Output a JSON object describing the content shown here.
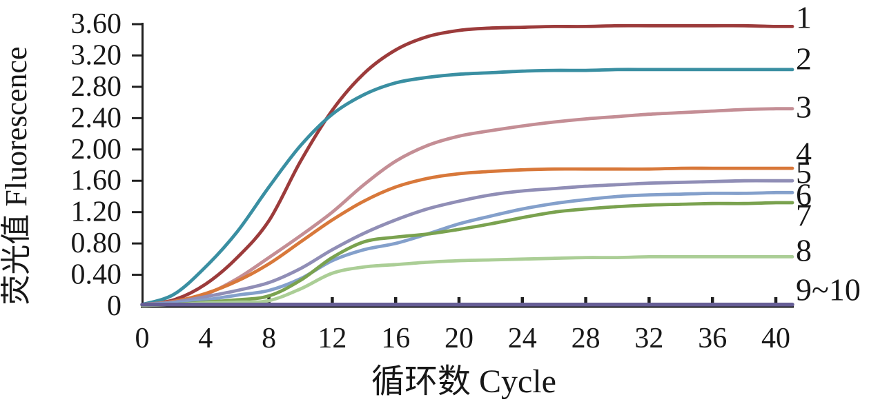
{
  "figure": {
    "background": "#ffffff",
    "axis_color": "#1f1f1f",
    "text_color": "#171717"
  },
  "chart_data": {
    "type": "line",
    "title": "",
    "xlabel": "循环数 Cycle",
    "ylabel": "荧光值 Fluorescence",
    "xlim": [
      0,
      40
    ],
    "ylim": [
      0,
      3.6
    ],
    "grid": false,
    "legend_position": "labels-at-right-end-of-lines",
    "xticks": [
      0,
      4,
      8,
      12,
      16,
      20,
      24,
      28,
      32,
      36,
      40
    ],
    "yticks": [
      0,
      0.4,
      0.8,
      1.2,
      1.6,
      2.0,
      2.4,
      2.8,
      3.2,
      3.6
    ],
    "ytick_labels": [
      "0",
      "0.40",
      "0.80",
      "1.20",
      "1.60",
      "2.00",
      "2.40",
      "2.80",
      "3.20",
      "3.60"
    ],
    "x_cycles": [
      0,
      2,
      4,
      6,
      8,
      10,
      12,
      14,
      16,
      18,
      20,
      22,
      24,
      26,
      28,
      30,
      32,
      34,
      36,
      38,
      40
    ],
    "series": [
      {
        "name": "1",
        "color": "#9c3b3b",
        "plateau": 3.57,
        "values": [
          0.02,
          0.08,
          0.28,
          0.62,
          1.09,
          1.85,
          2.5,
          2.97,
          3.27,
          3.44,
          3.52,
          3.55,
          3.56,
          3.57,
          3.57,
          3.58,
          3.58,
          3.58,
          3.58,
          3.58,
          3.57
        ]
      },
      {
        "name": "2",
        "color": "#3a8fa2",
        "plateau": 3.02,
        "values": [
          0.02,
          0.15,
          0.5,
          0.95,
          1.52,
          2.05,
          2.45,
          2.7,
          2.85,
          2.92,
          2.96,
          2.98,
          3.0,
          3.01,
          3.01,
          3.02,
          3.02,
          3.02,
          3.02,
          3.02,
          3.02
        ]
      },
      {
        "name": "3",
        "color": "#c48e95",
        "plateau": 2.52,
        "values": [
          0.02,
          0.06,
          0.15,
          0.35,
          0.62,
          0.9,
          1.2,
          1.55,
          1.85,
          2.05,
          2.17,
          2.24,
          2.3,
          2.35,
          2.39,
          2.42,
          2.45,
          2.47,
          2.49,
          2.51,
          2.52
        ]
      },
      {
        "name": "4",
        "color": "#d8783a",
        "plateau": 1.76,
        "values": [
          0.02,
          0.06,
          0.16,
          0.32,
          0.54,
          0.82,
          1.1,
          1.34,
          1.52,
          1.63,
          1.69,
          1.72,
          1.74,
          1.75,
          1.75,
          1.75,
          1.75,
          1.76,
          1.76,
          1.76,
          1.76
        ]
      },
      {
        "name": "5",
        "color": "#908eb6",
        "plateau": 1.6,
        "values": [
          0.02,
          0.05,
          0.12,
          0.2,
          0.3,
          0.48,
          0.72,
          0.93,
          1.1,
          1.24,
          1.34,
          1.42,
          1.47,
          1.5,
          1.53,
          1.55,
          1.57,
          1.58,
          1.59,
          1.6,
          1.6
        ]
      },
      {
        "name": "6",
        "color": "#84a0cb",
        "plateau": 1.45,
        "values": [
          0.02,
          0.04,
          0.08,
          0.14,
          0.2,
          0.35,
          0.58,
          0.72,
          0.8,
          0.92,
          1.05,
          1.15,
          1.24,
          1.31,
          1.36,
          1.4,
          1.42,
          1.43,
          1.44,
          1.44,
          1.45
        ]
      },
      {
        "name": "7",
        "color": "#7aa24f",
        "plateau": 1.32,
        "values": [
          0.01,
          0.02,
          0.05,
          0.08,
          0.13,
          0.33,
          0.62,
          0.82,
          0.88,
          0.92,
          0.98,
          1.05,
          1.13,
          1.2,
          1.24,
          1.27,
          1.29,
          1.3,
          1.31,
          1.31,
          1.32
        ]
      },
      {
        "name": "8",
        "color": "#abce96",
        "plateau": 0.63,
        "values": [
          0.01,
          0.02,
          0.04,
          0.05,
          0.07,
          0.22,
          0.42,
          0.5,
          0.53,
          0.56,
          0.58,
          0.59,
          0.6,
          0.61,
          0.62,
          0.62,
          0.63,
          0.63,
          0.63,
          0.63,
          0.63
        ]
      },
      {
        "name": "9~10",
        "color": "#665e96",
        "plateau": 0.02,
        "values": [
          0.02,
          0.02,
          0.02,
          0.02,
          0.02,
          0.02,
          0.02,
          0.02,
          0.02,
          0.02,
          0.02,
          0.02,
          0.02,
          0.02,
          0.02,
          0.02,
          0.02,
          0.02,
          0.02,
          0.02,
          0.02
        ]
      }
    ]
  }
}
